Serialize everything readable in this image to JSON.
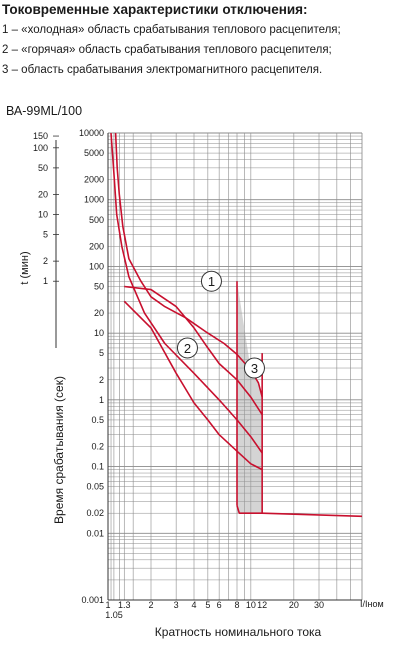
{
  "header": {
    "title": "Токовременные характеристики отключения:",
    "legend": [
      "1 – «холодная» область срабатывания теплового расцепителя;",
      "2 – «горячая» область срабатывания теплового расцепителя;",
      "3 – область срабатывания электромагнитного расцепителя."
    ],
    "model": "ВА-99ML/100"
  },
  "chart_data": {
    "type": "line",
    "xlabel": "Кратность номинального тока",
    "x_unit_label": "I/Iном",
    "y_label_sec": "Время срабатывания (сек)",
    "y_label_min": "t (мин)",
    "x_scale": "log",
    "x_range": [
      1,
      60
    ],
    "y_scale": "log",
    "y_range": [
      0.001,
      10000
    ],
    "x_ticks": [
      {
        "v": 1,
        "label": "1"
      },
      {
        "v": 1.05,
        "label": "1.05"
      },
      {
        "v": 1.3,
        "label": "1.3"
      },
      {
        "v": 2,
        "label": "2"
      },
      {
        "v": 3,
        "label": "3"
      },
      {
        "v": 4,
        "label": "4"
      },
      {
        "v": 5,
        "label": "5"
      },
      {
        "v": 6,
        "label": "6"
      },
      {
        "v": 8,
        "label": "8"
      },
      {
        "v": 10,
        "label": "10"
      },
      {
        "v": 12,
        "label": "12"
      },
      {
        "v": 20,
        "label": "20"
      },
      {
        "v": 30,
        "label": "30"
      }
    ],
    "y_ticks_sec": [
      {
        "v": 10000,
        "label": "10000"
      },
      {
        "v": 5000,
        "label": "5000"
      },
      {
        "v": 2000,
        "label": "2000"
      },
      {
        "v": 1000,
        "label": "1000"
      },
      {
        "v": 500,
        "label": "500"
      },
      {
        "v": 200,
        "label": "200"
      },
      {
        "v": 100,
        "label": "100"
      },
      {
        "v": 50,
        "label": "50"
      },
      {
        "v": 20,
        "label": "20"
      },
      {
        "v": 10,
        "label": "10"
      },
      {
        "v": 5,
        "label": "5"
      },
      {
        "v": 2,
        "label": "2"
      },
      {
        "v": 1,
        "label": "1"
      },
      {
        "v": 0.5,
        "label": "0.5"
      },
      {
        "v": 0.2,
        "label": "0.2"
      },
      {
        "v": 0.1,
        "label": "0.1"
      },
      {
        "v": 0.05,
        "label": "0.05"
      },
      {
        "v": 0.02,
        "label": "0.02"
      },
      {
        "v": 0.01,
        "label": "0.01"
      },
      {
        "v": 0.001,
        "label": "0.001"
      }
    ],
    "y_ticks_min": [
      {
        "v": 9000,
        "label": "150"
      },
      {
        "v": 6000,
        "label": "100"
      },
      {
        "v": 3000,
        "label": "50"
      },
      {
        "v": 1200,
        "label": "20"
      },
      {
        "v": 600,
        "label": "10"
      },
      {
        "v": 300,
        "label": "5"
      },
      {
        "v": 120,
        "label": "2"
      },
      {
        "v": 60,
        "label": "1"
      }
    ],
    "series": [
      {
        "name": "1",
        "x": [
          1.13,
          1.16,
          1.2,
          1.27,
          1.4,
          1.7,
          2.0,
          2.5,
          3.5,
          5,
          6.5,
          8,
          10,
          11.3,
          12
        ],
        "y": [
          10000,
          3000,
          1200,
          400,
          130,
          60,
          35,
          25,
          17,
          10,
          7,
          4.8,
          2.8,
          1.8,
          1.1
        ]
      },
      {
        "name": "2",
        "x": [
          1.05,
          1.1,
          1.15,
          1.25,
          1.4,
          1.8,
          2.5,
          4,
          6,
          8,
          10,
          12
        ],
        "y": [
          10000,
          2500,
          600,
          200,
          70,
          20,
          7,
          2.5,
          1,
          0.5,
          0.28,
          0.16
        ]
      },
      {
        "name": "thermal-cold-high",
        "x": [
          1.3,
          2,
          3,
          4,
          5,
          6,
          8,
          10,
          12
        ],
        "y": [
          50,
          45,
          25,
          12,
          6,
          3.5,
          2,
          1.1,
          0.6
        ]
      },
      {
        "name": "thermal-hot-low",
        "x": [
          1.3,
          2,
          3,
          4,
          5,
          6,
          8,
          10,
          12
        ],
        "y": [
          30,
          12,
          2.5,
          0.9,
          0.5,
          0.3,
          0.17,
          0.11,
          0.09
        ]
      },
      {
        "name": "3",
        "x_low": 8,
        "x_high": 12,
        "y_top_at_low": 60,
        "y_top_at_high": 5,
        "y_bottom": 0.02
      },
      {
        "name": "instant-tail",
        "x": [
          8,
          8.3,
          12,
          60
        ],
        "y": [
          0.026,
          0.02,
          0.02,
          0.018
        ]
      }
    ],
    "annotations": [
      {
        "text": "1",
        "x": 5.3,
        "y": 60
      },
      {
        "text": "2",
        "x": 3.6,
        "y": 6
      },
      {
        "text": "3",
        "x": 10.6,
        "y": 3
      }
    ],
    "grid": true
  }
}
